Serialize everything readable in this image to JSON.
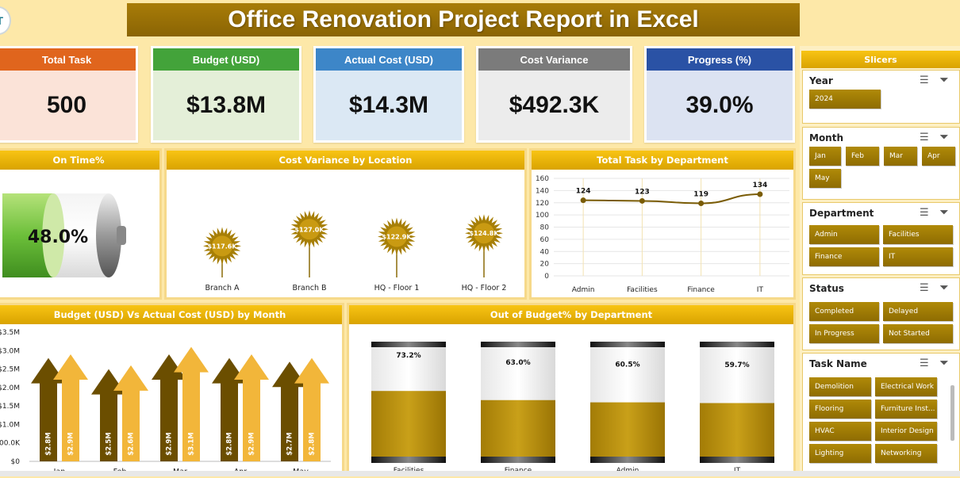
{
  "title": "Office Renovation Project Report in Excel",
  "logo_text": "T",
  "kpis": [
    {
      "label": "Total Task",
      "value": "500",
      "head": "#e0651d",
      "body": "#fbe3d8"
    },
    {
      "label": "Budget (USD)",
      "value": "$13.8M",
      "head": "#43a33a",
      "body": "#e4efd8"
    },
    {
      "label": "Actual Cost (USD)",
      "value": "$14.3M",
      "head": "#3d86c8",
      "body": "#dbe8f4"
    },
    {
      "label": "Cost Variance",
      "value": "$492.3K",
      "head": "#7b7b7b",
      "body": "#ececec"
    },
    {
      "label": "Progress (%)",
      "value": "39.0%",
      "head": "#2a52a5",
      "body": "#dce3f2"
    }
  ],
  "ontime": {
    "title": "On Time%",
    "value": "48.0%",
    "fraction": 0.48
  },
  "cost_variance": {
    "title": "Cost Variance by Location",
    "chart_data": {
      "type": "scatter",
      "categories": [
        "Branch A",
        "Branch B",
        "HQ - Floor 1",
        "HQ - Floor 2"
      ],
      "labels": [
        "$117.6K",
        "$127.0K",
        "$122.9K",
        "$124.8K"
      ],
      "values": [
        117.6,
        127.0,
        122.9,
        124.8
      ]
    }
  },
  "tasks_dept": {
    "title": "Total Task by Department",
    "chart_data": {
      "type": "line",
      "categories": [
        "Admin",
        "Facilities",
        "Finance",
        "IT"
      ],
      "values": [
        124,
        123,
        119,
        134
      ],
      "ylim": [
        0,
        160
      ],
      "yticks": [
        "0",
        "20",
        "40",
        "60",
        "80",
        "100",
        "120",
        "140",
        "160"
      ]
    }
  },
  "budget_month": {
    "title": "Budget (USD) Vs Actual Cost (USD) by Month",
    "chart_data": {
      "type": "bar",
      "categories": [
        "Jan",
        "Feb",
        "Mar",
        "Apr",
        "May"
      ],
      "series": [
        {
          "name": "Budget (USD)",
          "values": [
            2.8,
            2.5,
            2.9,
            2.8,
            2.7
          ],
          "labels": [
            "$2.8M",
            "$2.5M",
            "$2.9M",
            "$2.8M",
            "$2.7M"
          ],
          "color": "#6b4e00"
        },
        {
          "name": "Actual Cost (USD)",
          "values": [
            2.9,
            2.6,
            3.1,
            2.9,
            2.8
          ],
          "labels": [
            "$2.9M",
            "$2.6M",
            "$3.1M",
            "$2.9M",
            "$2.8M"
          ],
          "color": "#f2b63a"
        }
      ],
      "ylim": [
        0,
        3.5
      ],
      "yticks": [
        "$0",
        "$500.0K",
        "$1.0M",
        "$1.5M",
        "$2.0M",
        "$2.5M",
        "$3.0M",
        "$3.5M"
      ]
    }
  },
  "out_of_budget": {
    "title": "Out of Budget% by Department",
    "chart_data": {
      "type": "bar",
      "categories": [
        "Facilities",
        "Finance",
        "Admin",
        "IT"
      ],
      "values": [
        73.2,
        63.0,
        60.5,
        59.7
      ],
      "labels": [
        "73.2%",
        "63.0%",
        "60.5%",
        "59.7%"
      ],
      "ylim": [
        0,
        100
      ]
    }
  },
  "slicers": {
    "title": "Slicers",
    "groups": [
      {
        "name": "Year",
        "items": [
          "2024"
        ]
      },
      {
        "name": "Month",
        "items": [
          "Jan",
          "Feb",
          "Mar",
          "Apr",
          "May"
        ]
      },
      {
        "name": "Department",
        "items": [
          "Admin",
          "Facilities",
          "Finance",
          "IT"
        ]
      },
      {
        "name": "Status",
        "items": [
          "Completed",
          "Delayed",
          "In Progress",
          "Not Started"
        ]
      },
      {
        "name": "Task Name",
        "items": [
          "Demolition",
          "Electrical Work",
          "Flooring",
          "Furniture Inst...",
          "HVAC",
          "Interior Design",
          "Lighting",
          "Networking"
        ]
      }
    ]
  }
}
